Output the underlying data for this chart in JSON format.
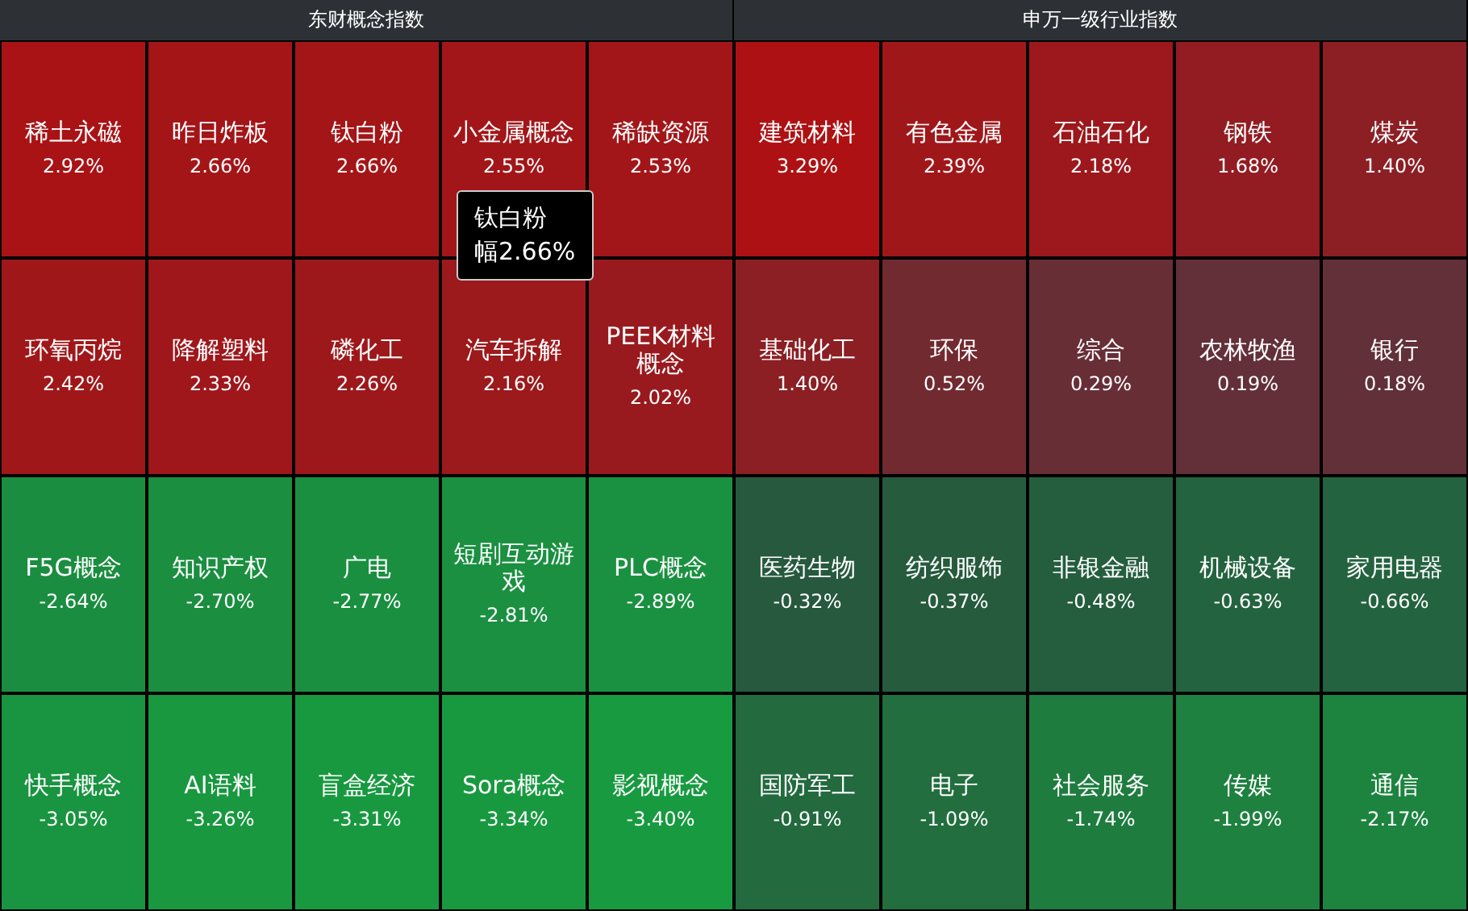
{
  "chart_data": [
    {
      "type": "other",
      "title": "东财概念指数",
      "categories": [
        "稀土永磁",
        "昨日炸板",
        "钛白粉",
        "小金属概念",
        "稀缺资源",
        "环氧丙烷",
        "降解塑料",
        "磷化工",
        "汽车拆解",
        "PEEK材料概念",
        "F5G概念",
        "知识产权",
        "广电",
        "短剧互动游戏",
        "PLC概念",
        "快手概念",
        "AI语料",
        "盲盒经济",
        "Sora概念",
        "影视概念"
      ],
      "values": [
        2.92,
        2.66,
        2.66,
        2.55,
        2.53,
        2.42,
        2.33,
        2.26,
        2.16,
        2.02,
        -2.64,
        -2.7,
        -2.77,
        -2.81,
        -2.89,
        -3.05,
        -3.26,
        -3.31,
        -3.34,
        -3.4
      ],
      "value_labels": [
        "2.92%",
        "2.66%",
        "2.66%",
        "2.55%",
        "2.53%",
        "2.42%",
        "2.33%",
        "2.26%",
        "2.16%",
        "2.02%",
        "-2.64%",
        "-2.70%",
        "-2.77%",
        "-2.81%",
        "-2.89%",
        "-3.05%",
        "-3.26%",
        "-3.31%",
        "-3.34%",
        "-3.40%"
      ],
      "annotations": [
        "钛白粉",
        "幅2.66%"
      ]
    },
    {
      "type": "other",
      "title": "申万一级行业指数",
      "categories": [
        "建筑材料",
        "有色金属",
        "石油石化",
        "钢铁",
        "煤炭",
        "基础化工",
        "环保",
        "综合",
        "农林牧渔",
        "银行",
        "医药生物",
        "纺织服饰",
        "非银金融",
        "机械设备",
        "家用电器",
        "国防军工",
        "电子",
        "社会服务",
        "传媒",
        "通信"
      ],
      "values": [
        3.29,
        2.39,
        2.18,
        1.68,
        1.4,
        1.4,
        0.52,
        0.29,
        0.19,
        0.18,
        -0.32,
        -0.37,
        -0.48,
        -0.63,
        -0.66,
        -0.91,
        -1.09,
        -1.74,
        -1.99,
        -2.17
      ],
      "value_labels": [
        "3.29%",
        "2.39%",
        "2.18%",
        "1.68%",
        "1.40%",
        "1.40%",
        "0.52%",
        "0.29%",
        "0.19%",
        "0.18%",
        "-0.32%",
        "-0.37%",
        "-0.48%",
        "-0.63%",
        "-0.66%",
        "-0.91%",
        "-1.09%",
        "-1.74%",
        "-1.99%",
        "-2.17%"
      ]
    }
  ]
}
